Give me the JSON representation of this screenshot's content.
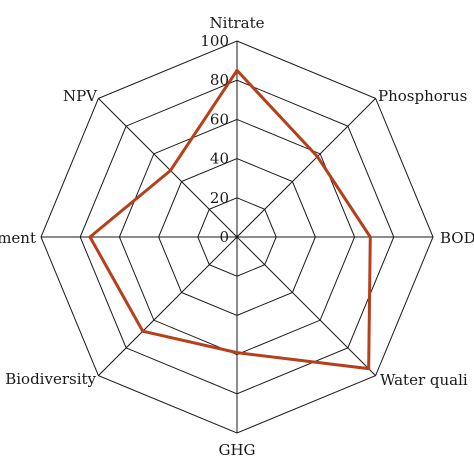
{
  "chart_data": {
    "type": "radar",
    "title": "",
    "axes": [
      "Nitrate",
      "Phosphorus",
      "BOD",
      "Water quality",
      "GHG",
      "Biodiversity",
      "Sediment",
      "NPV"
    ],
    "axis_label_text": [
      "Nitrate",
      "Phosphorus",
      "BOD",
      "Water quali",
      "GHG",
      "Biodiversity",
      "ment",
      "NPV"
    ],
    "rlim": [
      0,
      100
    ],
    "ticks": [
      0,
      20,
      40,
      60,
      80,
      100
    ],
    "grid": true,
    "series": [
      {
        "values": [
          85,
          58,
          68,
          95,
          59,
          68,
          75,
          48
        ]
      }
    ],
    "colors": {
      "series": "#b5401c",
      "grid": "#1a1a1a"
    }
  }
}
